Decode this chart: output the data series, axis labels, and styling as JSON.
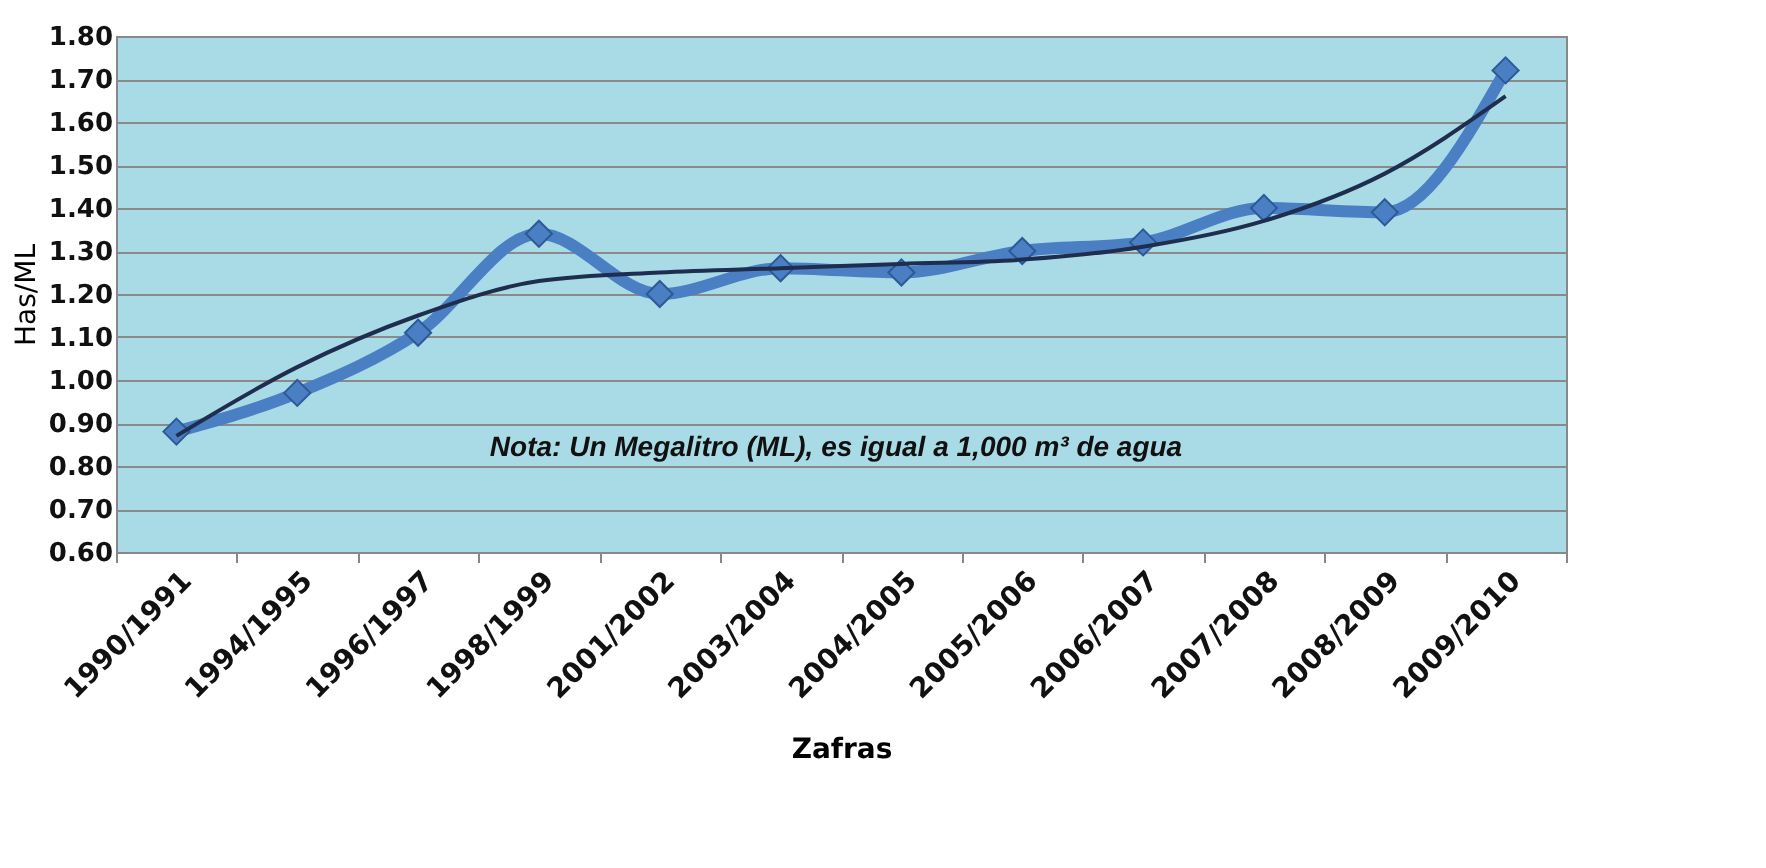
{
  "chart_data": {
    "type": "line",
    "xlabel": "Zafras",
    "ylabel": "Has/ML",
    "categories": [
      "1990/1991",
      "1994/1995",
      "1996/1997",
      "1998/1999",
      "2001/2002",
      "2003/2004",
      "2004/2005",
      "2005/2006",
      "2006/2007",
      "2007/2008",
      "2008/2009",
      "2009/2010"
    ],
    "series": [
      {
        "color": "#4a7fc4",
        "marker": "diamond",
        "values": [
          0.88,
          0.97,
          1.11,
          1.34,
          1.2,
          1.26,
          1.25,
          1.3,
          1.32,
          1.4,
          1.39,
          1.72
        ]
      },
      {
        "type": "line",
        "color": "#1f2d4f",
        "marker": "none",
        "x": [
          "1990/1991",
          "1994/1995",
          "1996/1997",
          "1998/1999",
          "2001/2002",
          "2003/2004",
          "2004/2005",
          "2005/2006",
          "2006/2007",
          "2007/2008",
          "2008/2009",
          "2009/2010"
        ],
        "values": [
          0.87,
          1.03,
          1.15,
          1.23,
          1.25,
          1.26,
          1.27,
          1.28,
          1.31,
          1.37,
          1.48,
          1.66
        ]
      }
    ],
    "ylim": [
      0.6,
      1.8
    ],
    "yticks": [
      {
        "value": 0.6,
        "label": "0.60"
      },
      {
        "value": 0.7,
        "label": "0.70"
      },
      {
        "value": 0.8,
        "label": "0.80"
      },
      {
        "value": 0.9,
        "label": "0.90"
      },
      {
        "value": 1.0,
        "label": "1.00"
      },
      {
        "value": 1.1,
        "label": "1.10"
      },
      {
        "value": 1.2,
        "label": "1.20"
      },
      {
        "value": 1.3,
        "label": "1.30"
      },
      {
        "value": 1.4,
        "label": "1.40"
      },
      {
        "value": 1.5,
        "label": "1.50"
      },
      {
        "value": 1.6,
        "label": "1.60"
      },
      {
        "value": 1.7,
        "label": "1.70"
      },
      {
        "value": 1.8,
        "label": "1.80"
      }
    ],
    "grid": "y",
    "line_style": "solid",
    "annotations": [
      "Nota: Un Megalitro (ML), es igual a 1,000 m³ de agua"
    ]
  }
}
